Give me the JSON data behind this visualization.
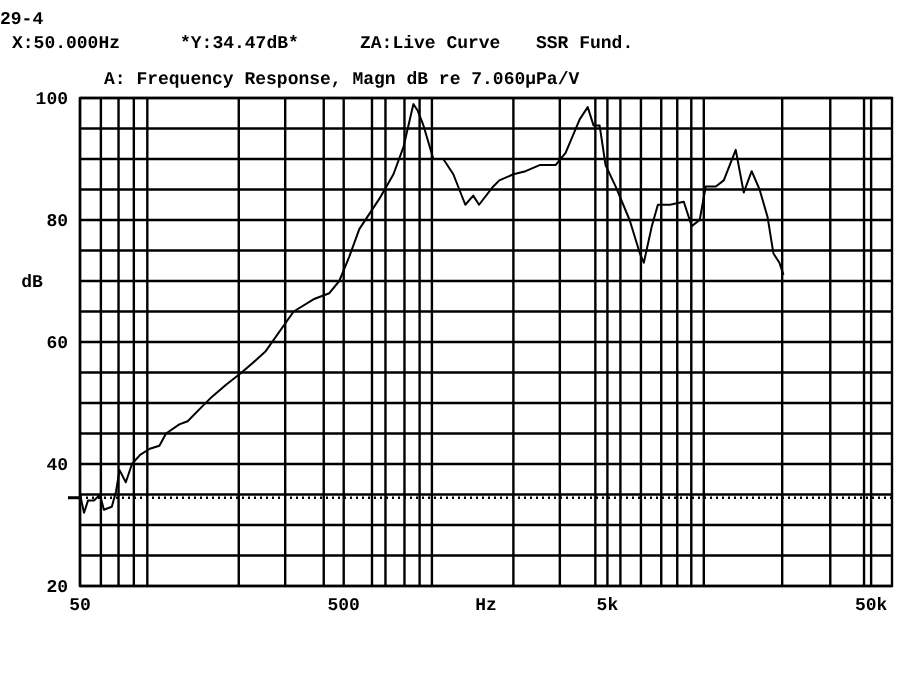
{
  "chart_data": {
    "type": "line",
    "title": "A: Frequency Response, Magn dB re 7.060µPa/V",
    "xlabel": "Hz",
    "ylabel": "dB",
    "annotations": [
      "29-4",
      "X:50.000Hz",
      "*Y:34.47dB*",
      "ZA:Live Curve",
      "SSR Fund."
    ],
    "log": "x",
    "xlim": [
      50,
      60000
    ],
    "xticks": [
      {
        "value": 50,
        "label": "50"
      },
      {
        "value": 60,
        "label": null
      },
      {
        "value": 70,
        "label": null
      },
      {
        "value": 80,
        "label": null
      },
      {
        "value": 90,
        "label": null
      },
      {
        "value": 200,
        "label": null
      },
      {
        "value": 300,
        "label": null
      },
      {
        "value": 420,
        "label": null
      },
      {
        "value": 500,
        "label": "500"
      },
      {
        "value": 640,
        "label": null
      },
      {
        "value": 720,
        "label": null
      },
      {
        "value": 850,
        "label": null
      },
      {
        "value": 970,
        "label": null
      },
      {
        "value": 1080,
        "label": null
      },
      {
        "value": 2200,
        "label": null
      },
      {
        "value": 3300,
        "label": null
      },
      {
        "value": 4500,
        "label": null
      },
      {
        "value": 5000,
        "label": "5k"
      },
      {
        "value": 5600,
        "label": null
      },
      {
        "value": 6700,
        "label": null
      },
      {
        "value": 8000,
        "label": null
      },
      {
        "value": 9200,
        "label": null
      },
      {
        "value": 10400,
        "label": null
      },
      {
        "value": 11600,
        "label": null
      },
      {
        "value": 23000,
        "label": null
      },
      {
        "value": 35000,
        "label": null
      },
      {
        "value": 47000,
        "label": null
      },
      {
        "value": 50000,
        "label": "50k"
      }
    ],
    "ylim": [
      20,
      100
    ],
    "yticks": [
      20,
      {
        "value": 25,
        "label": null
      },
      {
        "value": 30,
        "label": null
      },
      {
        "value": 35,
        "label": null
      },
      40,
      {
        "value": 45,
        "label": null
      },
      {
        "value": 50,
        "label": null
      },
      {
        "value": 55,
        "label": null
      },
      60,
      {
        "value": 65,
        "label": null
      },
      {
        "value": 70,
        "label": null
      },
      {
        "value": 75,
        "label": null
      },
      80,
      {
        "value": 85,
        "label": null
      },
      {
        "value": 90,
        "label": null
      },
      {
        "value": 95,
        "label": null
      },
      100
    ],
    "grid": true,
    "marker": "none",
    "line_style": "solid",
    "ref_lines": [
      {
        "axis": "y",
        "value": 34.47,
        "label": null,
        "line_style": "dotted"
      }
    ],
    "series": [
      {
        "color": "#000000",
        "x": [
          50,
          51.8,
          53.6,
          56.5,
          59.5,
          61.6,
          66,
          68.5,
          70.6,
          74.6,
          78.7,
          84.5,
          92,
          100,
          106,
          119,
          128,
          142,
          158,
          179,
          205,
          232,
          253,
          323,
          384,
          441,
          481,
          525,
          573,
          683,
          772,
          843,
          919,
          952,
          1003,
          1094,
          1193,
          1302,
          1446,
          1549,
          1630,
          1845,
          1946,
          2200,
          2447,
          2766,
          3180,
          3470,
          3925,
          4210,
          4430,
          4670,
          4920,
          5370,
          6070,
          6640,
          6870,
          7370,
          7770,
          8630,
          9740,
          10440,
          11190,
          11800,
          12880,
          13810,
          15330,
          16440,
          17620,
          18880,
          20240,
          21310,
          22450,
          23260
        ],
        "values": [
          35,
          32,
          34,
          34,
          35,
          32.5,
          33,
          35.5,
          39,
          37,
          40,
          41.5,
          42.5,
          43,
          45,
          46.5,
          47,
          49,
          51,
          53,
          55,
          57,
          58.5,
          65,
          67,
          68,
          70,
          74,
          78.5,
          83.5,
          87.5,
          92,
          99,
          98,
          95.5,
          90,
          90,
          87.5,
          82.5,
          84,
          82.5,
          85.5,
          86.5,
          87.5,
          88,
          89,
          89,
          91,
          96.5,
          98.5,
          95.5,
          95.5,
          89,
          85.5,
          80,
          74.5,
          73,
          79,
          82.5,
          82.5,
          83,
          79,
          80,
          85.5,
          85.5,
          86.5,
          91.5,
          84.5,
          88,
          85,
          80.5,
          74.5,
          73,
          71
        ]
      }
    ]
  }
}
